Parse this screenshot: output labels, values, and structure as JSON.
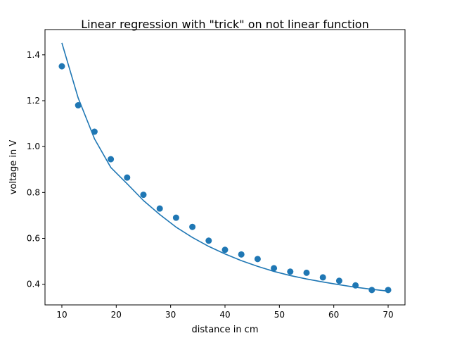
{
  "chart_data": {
    "type": "scatter",
    "title": "Linear regression with \"trick\" on not linear function",
    "xlabel": "distance in cm",
    "ylabel": "voltage in V",
    "xlim": [
      6.9,
      73.1
    ],
    "ylim": [
      0.31,
      1.51
    ],
    "xticks": [
      10,
      20,
      30,
      40,
      50,
      60,
      70
    ],
    "yticks": [
      0.4,
      0.6,
      0.8,
      1.0,
      1.2,
      1.4
    ],
    "ytick_labels": [
      "0.4",
      "0.6",
      "0.8",
      "1.0",
      "1.2",
      "1.4"
    ],
    "grid": false,
    "color": "#1f77b4",
    "series": [
      {
        "kind": "scatter",
        "x": [
          10,
          13,
          16,
          19,
          22,
          25,
          28,
          31,
          34,
          37,
          40,
          43,
          46,
          49,
          52,
          55,
          58,
          61,
          64,
          67,
          70
        ],
        "y": [
          1.35,
          1.18,
          1.065,
          0.945,
          0.865,
          0.79,
          0.73,
          0.69,
          0.65,
          0.59,
          0.55,
          0.53,
          0.51,
          0.47,
          0.455,
          0.45,
          0.43,
          0.415,
          0.395,
          0.375,
          0.375
        ]
      },
      {
        "kind": "line",
        "x": [
          10,
          13,
          16,
          19,
          22,
          25,
          28,
          31,
          34,
          37,
          40,
          43,
          46,
          49,
          52,
          55,
          58,
          61,
          64,
          67,
          70
        ],
        "y": [
          1.452,
          1.212,
          1.034,
          0.909,
          0.838,
          0.765,
          0.704,
          0.649,
          0.604,
          0.565,
          0.532,
          0.503,
          0.478,
          0.456,
          0.438,
          0.423,
          0.41,
          0.398,
          0.387,
          0.378,
          0.37
        ]
      }
    ]
  }
}
